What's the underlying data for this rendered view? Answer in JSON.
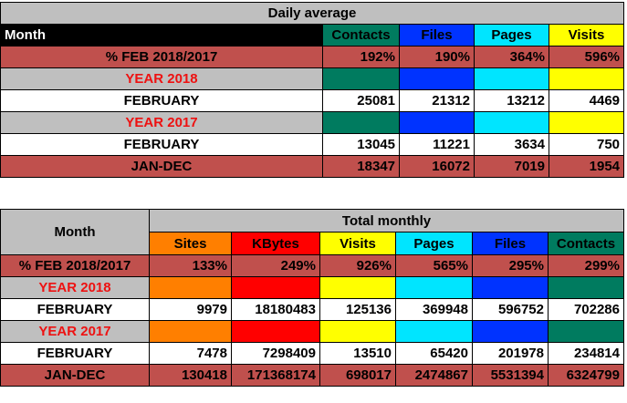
{
  "daily": {
    "title": "Daily average",
    "header": {
      "month": "Month",
      "cols": [
        "Contacts",
        "Files",
        "Pages",
        "Visits"
      ]
    },
    "col_colors": [
      "#007b5f",
      "#0033ff",
      "#00e5ff",
      "#ffff00"
    ],
    "pct_row": {
      "label": "% FEB 2018/2017",
      "values": [
        "192%",
        "190%",
        "364%",
        "596%"
      ]
    },
    "year2018": {
      "label": "YEAR 2018"
    },
    "feb2018": {
      "label": "FEBRUARY",
      "values": [
        "25081",
        "21312",
        "13212",
        "4469"
      ]
    },
    "year2017": {
      "label": "YEAR 2017"
    },
    "feb2017": {
      "label": "FEBRUARY",
      "values": [
        "13045",
        "11221",
        "3634",
        "750"
      ]
    },
    "jandec": {
      "label": "JAN-DEC",
      "values": [
        "18347",
        "16072",
        "7019",
        "1954"
      ]
    }
  },
  "monthly": {
    "title": "Total monthly",
    "month_label": "Month",
    "cols": [
      "Sites",
      "KBytes",
      "Visits",
      "Pages",
      "Files",
      "Contacts"
    ],
    "col_colors": [
      "#ff7f00",
      "#ff0000",
      "#ffff00",
      "#00e5ff",
      "#0033ff",
      "#007b5f"
    ],
    "pct_row": {
      "label": "% FEB 2018/2017",
      "values": [
        "133%",
        "249%",
        "926%",
        "565%",
        "295%",
        "299%"
      ]
    },
    "year2018": {
      "label": "YEAR 2018"
    },
    "feb2018": {
      "label": "FEBRUARY",
      "values": [
        "9979",
        "18180483",
        "125136",
        "369948",
        "596752",
        "702286"
      ]
    },
    "year2017": {
      "label": "YEAR 2017"
    },
    "feb2017": {
      "label": "FEBRUARY",
      "values": [
        "7478",
        "7298409",
        "13510",
        "65420",
        "201978",
        "234814"
      ]
    },
    "jandec": {
      "label": "JAN-DEC",
      "values": [
        "130418",
        "171368174",
        "698017",
        "2474867",
        "5531394",
        "6324799"
      ]
    }
  }
}
